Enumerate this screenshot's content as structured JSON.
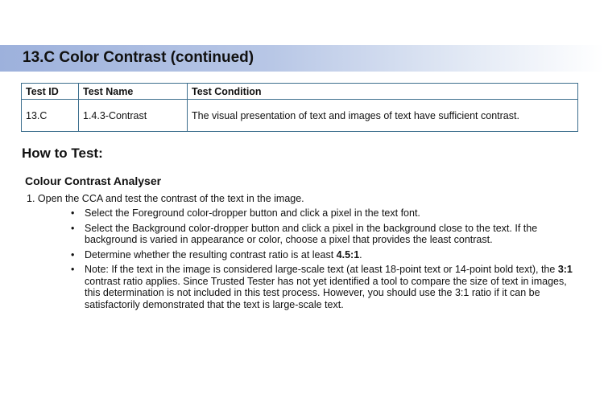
{
  "title": "13.C Color Contrast (continued)",
  "table": {
    "headers": [
      "Test ID",
      "Test Name",
      "Test Condition"
    ],
    "rows": [
      [
        "13.C",
        "1.4.3-Contrast",
        "The visual presentation of text and images of text have sufficient contrast."
      ]
    ]
  },
  "how_to_test": "How to Test:",
  "tool": "Colour Contrast Analyser",
  "step1": "1.  Open the CCA and test the contrast of the text in the image.",
  "bullets": [
    {
      "text": "Select the Foreground color-dropper button and click a pixel in the text font."
    },
    {
      "text": "Select the Background color-dropper button and click a pixel in the background close to the text. If the background is varied in appearance or color, choose a pixel that provides the least contrast."
    },
    {
      "pre": "Determine whether the resulting contrast ratio is at least ",
      "bold": "4.5:1",
      "post": "."
    },
    {
      "pre": "Note: If the text in the image is considered large-scale text (at least 18-point text or 14-point bold text), the ",
      "bold": "3:1",
      "post": " contrast ratio applies. Since Trusted Tester has not yet identified a tool to compare the size of text in images, this determination is not included in this test process. However, you should use the 3:1 ratio if it can be satisfactorily demonstrated that the text is large-scale text."
    }
  ]
}
